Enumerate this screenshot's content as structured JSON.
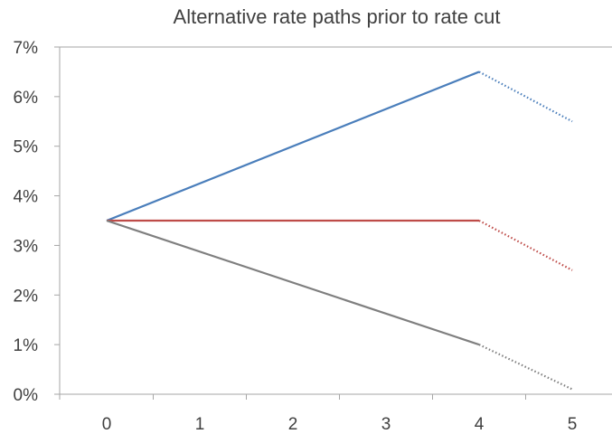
{
  "chart_data": {
    "type": "line",
    "title": "Alternative rate paths prior to rate cut",
    "xlabel": "",
    "ylabel": "",
    "x_categories": [
      "0",
      "1",
      "2",
      "3",
      "4",
      "5"
    ],
    "y_tick_labels": [
      "0%",
      "1%",
      "2%",
      "3%",
      "4%",
      "5%",
      "6%",
      "7%"
    ],
    "ylim": [
      0,
      7
    ],
    "grid": "top border only",
    "legend": "none",
    "series": [
      {
        "color": "#4a7ebb",
        "solid": [
          {
            "x": 0,
            "y": 3.5
          },
          {
            "x": 4,
            "y": 6.5
          }
        ],
        "dotted": [
          {
            "x": 4,
            "y": 6.5
          },
          {
            "x": 5,
            "y": 5.5
          }
        ]
      },
      {
        "color": "#be4b48",
        "solid": [
          {
            "x": 0,
            "y": 3.5
          },
          {
            "x": 4,
            "y": 3.5
          }
        ],
        "dotted": [
          {
            "x": 4,
            "y": 3.5
          },
          {
            "x": 5,
            "y": 2.5
          }
        ]
      },
      {
        "color": "#7f7f7f",
        "solid": [
          {
            "x": 0,
            "y": 3.5
          },
          {
            "x": 4,
            "y": 1.0
          }
        ],
        "dotted": [
          {
            "x": 4,
            "y": 1.0
          },
          {
            "x": 5,
            "y": 0.1
          }
        ]
      }
    ]
  }
}
